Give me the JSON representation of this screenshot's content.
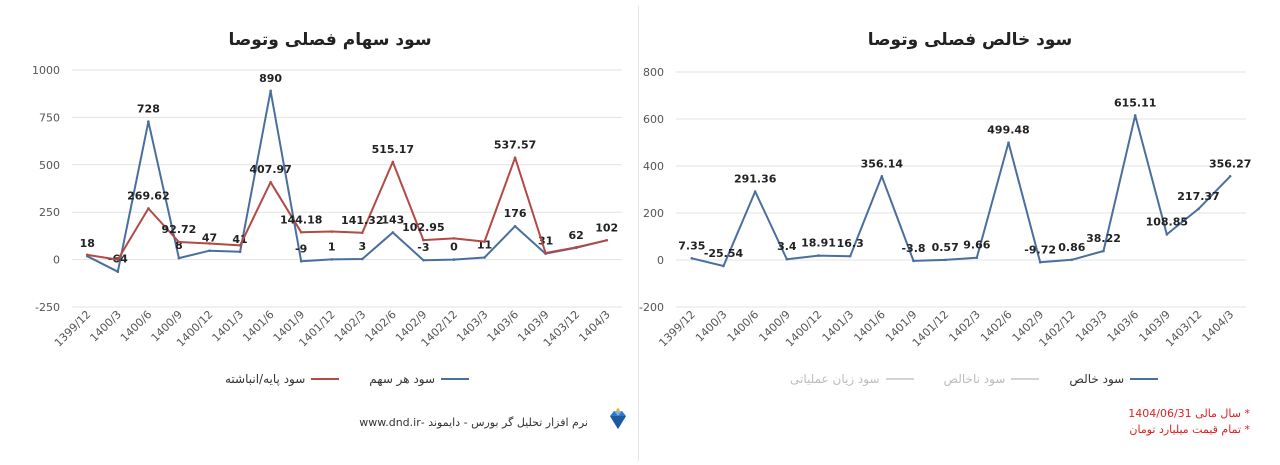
{
  "x_labels": [
    "1399/12",
    "1400/3",
    "1400/6",
    "1400/9",
    "1400/12",
    "1401/3",
    "1401/6",
    "1401/9",
    "1401/12",
    "1402/3",
    "1402/6",
    "1402/9",
    "1402/12",
    "1403/3",
    "1403/6",
    "1403/9",
    "1403/12",
    "1404/3"
  ],
  "colors": {
    "blue": "#4a6f9e",
    "red": "#b24a45",
    "grid": "#e3e3e3",
    "inactive": "#bdbdbd"
  },
  "left": {
    "title": "سود سهام فصلی وتوصا",
    "legend": [
      {
        "label": "سود هر سهم",
        "color": "#4a6f9e"
      },
      {
        "label": "سود پایه/انباشته",
        "color": "#b24a45"
      }
    ]
  },
  "right": {
    "title": "سود خالص فصلی وتوصا",
    "legend": [
      {
        "label": "سود خالص",
        "color": "#4a6f9e",
        "active": true
      },
      {
        "label": "سود ناخالص",
        "color": "#bdbdbd",
        "active": false
      },
      {
        "label": "سود زیان عملیاتی",
        "color": "#bdbdbd",
        "active": false
      }
    ]
  },
  "footer": {
    "source_text": "نرم افزار تحلیل گر بورس - دایموند -www.dnd.ir",
    "note1": "* سال مالی 1404/06/31",
    "note2": "* تمام قیمت میلیارد تومان",
    "logo_icon": "diamond-icon"
  },
  "chart_data": [
    {
      "type": "line",
      "title": "سود سهام فصلی وتوصا",
      "categories": [
        "1399/12",
        "1400/3",
        "1400/6",
        "1400/9",
        "1400/12",
        "1401/3",
        "1401/6",
        "1401/9",
        "1401/12",
        "1402/3",
        "1402/6",
        "1402/9",
        "1402/12",
        "1403/3",
        "1403/6",
        "1403/9",
        "1403/12",
        "1404/3"
      ],
      "ylim": [
        -250,
        1000
      ],
      "yticks": [
        -250,
        0,
        250,
        500,
        750,
        1000
      ],
      "grid": true,
      "legend_position": "bottom",
      "series": [
        {
          "name": "سود هر سهم",
          "color": "#4a6f9e",
          "values": [
            18,
            -64,
            728,
            8,
            47,
            41,
            890,
            -9,
            1,
            3,
            143,
            -3,
            0,
            11,
            176,
            31,
            62,
            102
          ],
          "labels": [
            "18",
            "-64",
            "728",
            "8",
            "47",
            "41",
            "890",
            "-9",
            "1",
            "3",
            "143",
            "-3",
            "0",
            "11",
            "176",
            "31",
            "62",
            "102"
          ]
        },
        {
          "name": "سود پایه/انباشته",
          "color": "#b24a45",
          "values": [
            25,
            0,
            269.62,
            92.72,
            85,
            75,
            407.97,
            144.18,
            148,
            141.32,
            515.17,
            102.95,
            112,
            95,
            537.57,
            35,
            65,
            102
          ],
          "labels": [
            "",
            "",
            "269.62",
            "92.72",
            "",
            "",
            "407.97",
            "144.18",
            "",
            "141.32",
            "515.17",
            "102.95",
            "",
            "",
            "537.57",
            "",
            "",
            ""
          ]
        }
      ]
    },
    {
      "type": "line",
      "title": "سود خالص فصلی وتوصا",
      "categories": [
        "1399/12",
        "1400/3",
        "1400/6",
        "1400/9",
        "1400/12",
        "1401/3",
        "1401/6",
        "1401/9",
        "1401/12",
        "1402/3",
        "1402/6",
        "1402/9",
        "1402/12",
        "1403/3",
        "1403/6",
        "1403/9",
        "1403/12",
        "1404/3"
      ],
      "ylim": [
        -200,
        800
      ],
      "yticks": [
        -200,
        0,
        200,
        400,
        600,
        800
      ],
      "grid": true,
      "legend_position": "bottom",
      "series": [
        {
          "name": "سود خالص",
          "color": "#4a6f9e",
          "values": [
            7.35,
            -25.54,
            291.36,
            3.4,
            18.91,
            16.3,
            356.14,
            -3.8,
            0.57,
            9.66,
            499.48,
            -9.72,
            0.86,
            38.22,
            615.11,
            108.85,
            217.37,
            356.27
          ],
          "labels": [
            "7.35",
            "-25.54",
            "291.36",
            "3.4",
            "18.91",
            "16.3",
            "356.14",
            "-3.8",
            "0.57",
            "9.66",
            "499.48",
            "-9.72",
            "0.86",
            "38.22",
            "615.11",
            "108.85",
            "217.37",
            "356.27"
          ]
        }
      ]
    }
  ]
}
